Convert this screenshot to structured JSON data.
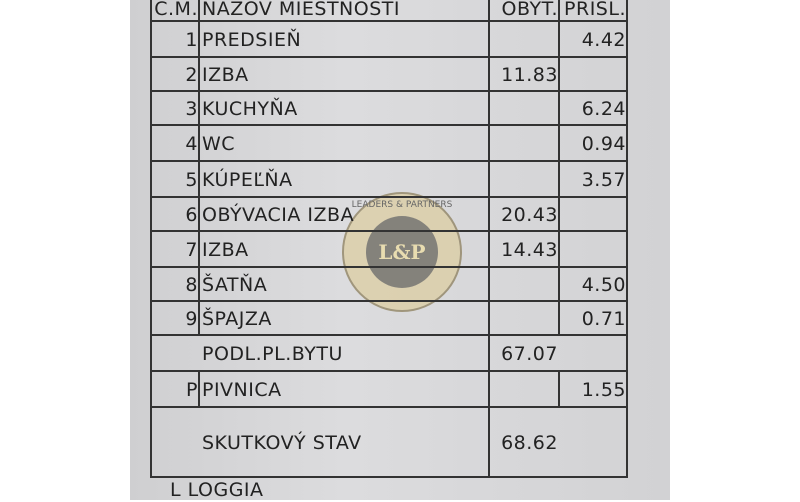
{
  "header": {
    "cm": "Č.M.",
    "name": "NÁZOV MIESTNOSTI",
    "obyt": "OBYT.",
    "prisl": "PRÍSL."
  },
  "rows": [
    {
      "cm": "1",
      "name": "PREDSIEŇ",
      "obyt": "",
      "prisl": "4.42"
    },
    {
      "cm": "2",
      "name": "IZBA",
      "obyt": "11.83",
      "prisl": ""
    },
    {
      "cm": "3",
      "name": "KUCHYŇA",
      "obyt": "",
      "prisl": "6.24"
    },
    {
      "cm": "4",
      "name": "WC",
      "obyt": "",
      "prisl": "0.94"
    },
    {
      "cm": "5",
      "name": "KÚPEĽŇA",
      "obyt": "",
      "prisl": "3.57"
    },
    {
      "cm": "6",
      "name": "OBÝVACIA IZBA",
      "obyt": "20.43",
      "prisl": ""
    },
    {
      "cm": "7",
      "name": "IZBA",
      "obyt": "14.43",
      "prisl": ""
    },
    {
      "cm": "8",
      "name": "ŠATŇA",
      "obyt": "",
      "prisl": "4.50"
    },
    {
      "cm": "9",
      "name": "ŠPAJZA",
      "obyt": "",
      "prisl": "0.71"
    }
  ],
  "podl": {
    "label": "PODL.PL.BYTU",
    "value": "67.07"
  },
  "pivnica": {
    "cm": "P",
    "name": "PIVNICA",
    "prisl": "1.55"
  },
  "skutkovy": {
    "label": "SKUTKOVÝ STAV",
    "value": "68.62"
  },
  "loggia": "L LOGGIA",
  "watermark": {
    "text": "LEADERS & PARTNERS",
    "mark": "L&P"
  }
}
